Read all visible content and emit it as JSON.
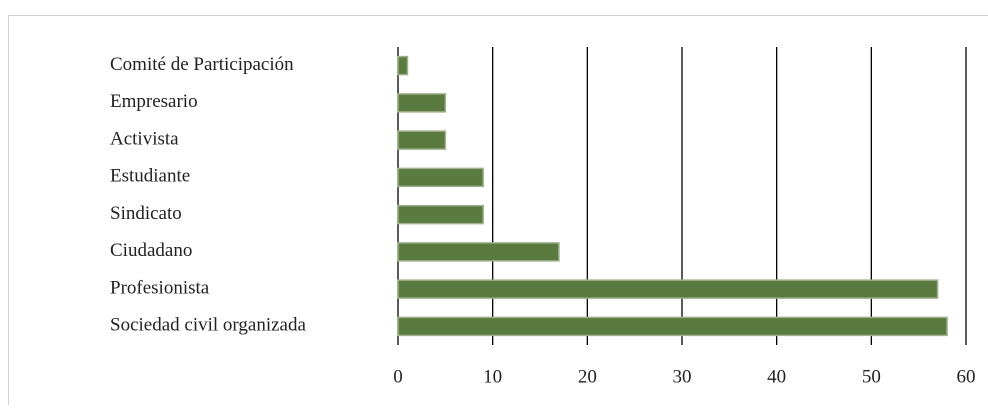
{
  "chart_data": {
    "type": "bar",
    "orientation": "horizontal",
    "categories": [
      "Comité de Participación",
      "Empresario",
      "Activista",
      "Estudiante",
      "Sindicato",
      "Ciudadano",
      "Profesionista",
      "Sociedad civil organizada"
    ],
    "values": [
      1,
      5,
      5,
      9,
      9,
      17,
      57,
      58
    ],
    "color": "#5b7a3f",
    "xlim": [
      0,
      60
    ],
    "xticks": [
      0,
      10,
      20,
      30,
      40,
      50,
      60
    ],
    "grid": true
  }
}
